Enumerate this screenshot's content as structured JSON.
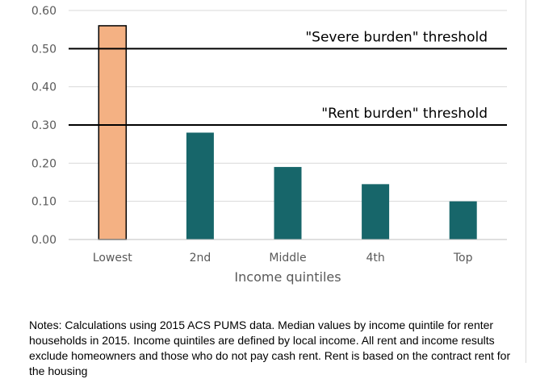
{
  "chart_data": {
    "type": "bar",
    "categories": [
      "Lowest",
      "2nd",
      "Middle",
      "4th",
      "Top"
    ],
    "values": [
      0.56,
      0.28,
      0.19,
      0.145,
      0.1
    ],
    "highlight_index": 0,
    "colors": {
      "highlight": "#f4b183",
      "default": "#17666a",
      "highlight_border": "#000000",
      "grid": "#d9d9d9",
      "reference_line": "#000000"
    },
    "ylim": [
      0,
      0.6
    ],
    "yticks": [
      "0.00",
      "0.10",
      "0.20",
      "0.30",
      "0.40",
      "0.50",
      "0.60"
    ],
    "ytick_values": [
      0,
      0.1,
      0.2,
      0.3,
      0.4,
      0.5,
      0.6
    ],
    "xlabel": "Income quintiles",
    "ylabel": "",
    "title": "",
    "grid": true,
    "reference_lines": [
      {
        "value": 0.5,
        "label": "\"Severe burden\" threshold"
      },
      {
        "value": 0.3,
        "label": "\"Rent burden\" threshold"
      }
    ]
  },
  "notes": "Notes: Calculations using 2015 ACS PUMS data. Median values by income quintile for renter households in 2015. Income quintiles are defined by local income. All rent and income results exclude homeowners and those who do not pay cash rent. Rent is based on the contract rent for the housing"
}
